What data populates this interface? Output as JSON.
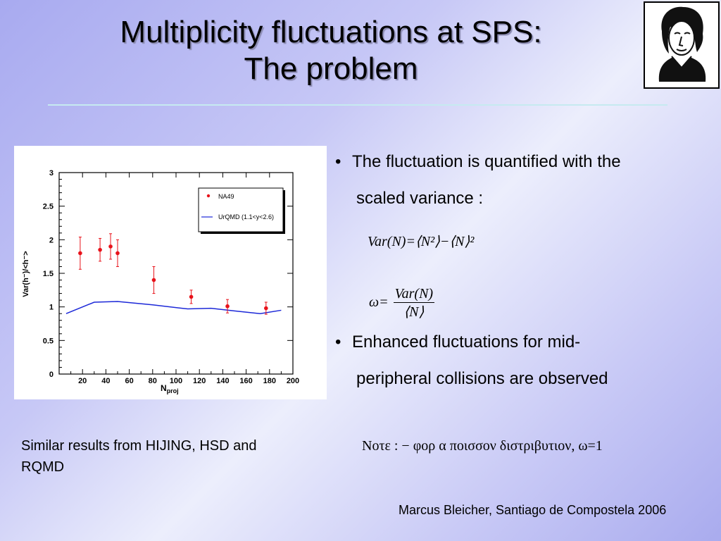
{
  "slide": {
    "title_line1": "Multiplicity fluctuations at SPS:",
    "title_line2": "The problem",
    "bullet1_line1": "The fluctuation is quantified with the",
    "bullet1_line2": "scaled variance :",
    "bullet2_line1": "Enhanced fluctuations for mid-",
    "bullet2_line2": "peripheral collisions are observed",
    "formula1": "Var(N)=⟨N²⟩−⟨N⟩²",
    "formula2_omega": "ω=",
    "formula2_num": "Var(N)",
    "formula2_den": "⟨N⟩",
    "note_left": "Similar results from HIJING, HSD and RQMD",
    "note_greek": "Νοτε :  − φορ α ποισσον διστριβυτιον, ω=1",
    "footer": "Marcus Bleicher, Santiago de Compostela 2006",
    "portrait_icon": "portrait-logo-icon"
  },
  "chart_data": {
    "type": "scatter",
    "xlabel": "N",
    "xlabel_sub": "proj",
    "ylabel": "Var(h⁻)/<h⁻>",
    "xlim": [
      0,
      200
    ],
    "ylim": [
      0,
      3
    ],
    "xticks": [
      "20",
      "40",
      "60",
      "80",
      "100",
      "120",
      "140",
      "160",
      "180",
      "200"
    ],
    "yticks": [
      "0",
      "0.5",
      "1",
      "1.5",
      "2",
      "2.5",
      "3"
    ],
    "legend_position": "top-right",
    "legend": [
      "NA49",
      "UrQMD (1.1<y<2.6)"
    ],
    "series": [
      {
        "name": "NA49",
        "color": "#e8121a",
        "points": [
          {
            "x": 18,
            "y": 1.8,
            "err": 0.24
          },
          {
            "x": 35,
            "y": 1.85,
            "err": 0.17
          },
          {
            "x": 44,
            "y": 1.9,
            "err": 0.19
          },
          {
            "x": 50,
            "y": 1.8,
            "err": 0.2
          },
          {
            "x": 81,
            "y": 1.4,
            "err": 0.2
          },
          {
            "x": 113,
            "y": 1.15,
            "err": 0.1
          },
          {
            "x": 144,
            "y": 1.01,
            "err": 0.1
          },
          {
            "x": 177,
            "y": 0.98,
            "err": 0.09
          }
        ]
      },
      {
        "name": "UrQMD (1.1<y<2.6)",
        "color": "#1c28d8",
        "line": [
          [
            6,
            0.9
          ],
          [
            30,
            1.07
          ],
          [
            50,
            1.08
          ],
          [
            80,
            1.03
          ],
          [
            110,
            0.97
          ],
          [
            130,
            0.98
          ],
          [
            150,
            0.94
          ],
          [
            172,
            0.9
          ],
          [
            190,
            0.95
          ]
        ]
      }
    ]
  }
}
